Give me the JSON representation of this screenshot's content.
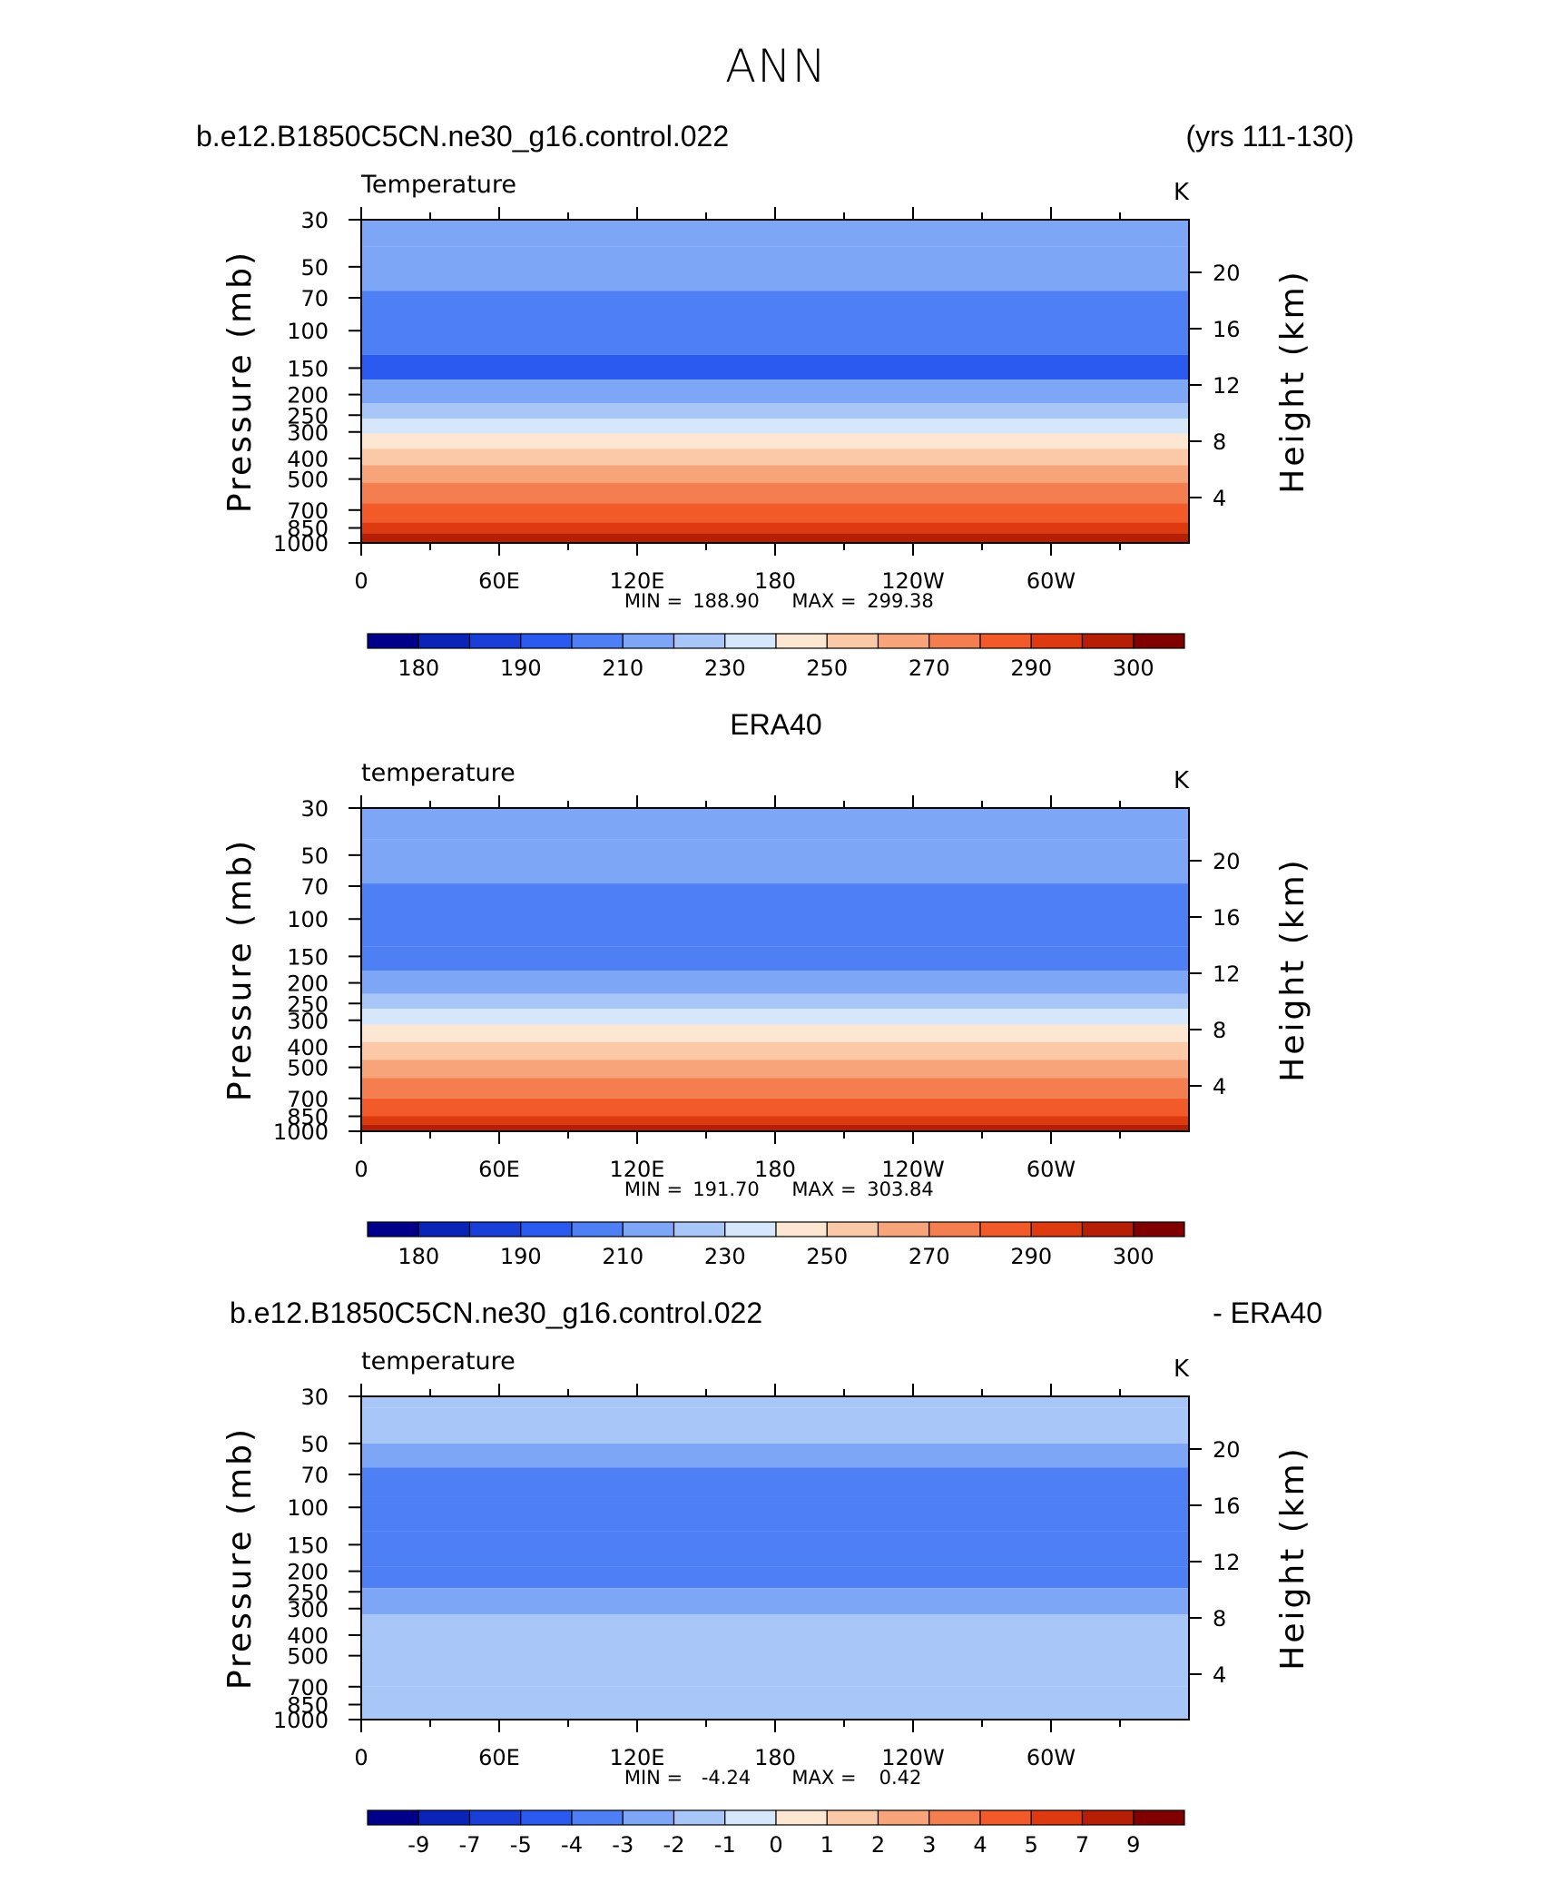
{
  "title": "ANN",
  "headers": [
    {
      "left": "b.e12.B1850C5CN.ne30_g16.control.022",
      "right": "(yrs 111-130)"
    },
    {
      "center": "ERA40"
    },
    {
      "left": "b.e12.B1850C5CN.ne30_g16.control.022",
      "right": "- ERA40"
    }
  ],
  "chart_data": [
    {
      "type": "heatmap",
      "variable_label": "Temperature",
      "units": "K",
      "ylabel": "Pressure (mb)",
      "ylabel_right": "Height (km)",
      "x_ticks": [
        "0",
        "60E",
        "120E",
        "180",
        "120W",
        "60W"
      ],
      "x_range": [
        0,
        360
      ],
      "y_ticks": [
        "30",
        "50",
        "70",
        "100",
        "150",
        "200",
        "250",
        "300",
        "400",
        "500",
        "700",
        "850",
        "1000"
      ],
      "y_range": [
        30,
        1000
      ],
      "y_scale": "log",
      "right_ticks": [
        "4",
        "8",
        "12",
        "16",
        "20"
      ],
      "stats_min_label": "MIN =",
      "stats_min": "188.90",
      "stats_max_label": "MAX =",
      "stats_max": "299.38",
      "colorbar_ticks": [
        "180",
        "190",
        "210",
        "230",
        "250",
        "270",
        "290",
        "300"
      ],
      "colorbar_colors": [
        "#00008b",
        "#0b24b8",
        "#1a3ed8",
        "#2a5af0",
        "#4f7ff5",
        "#7ea6f7",
        "#a9c6f9",
        "#d6e6fb",
        "#fde6d2",
        "#fbc9a8",
        "#f8a47b",
        "#f57e50",
        "#f25a2a",
        "#dd3a10",
        "#b61e05",
        "#800000"
      ],
      "bands": [
        {
          "p": 1000,
          "level": 15
        },
        {
          "p": 900,
          "level": 14
        },
        {
          "p": 800,
          "level": 13
        },
        {
          "p": 650,
          "level": 12
        },
        {
          "p": 520,
          "level": 11
        },
        {
          "p": 430,
          "level": 10
        },
        {
          "p": 360,
          "level": 9
        },
        {
          "p": 305,
          "level": 8
        },
        {
          "p": 260,
          "level": 7
        },
        {
          "p": 220,
          "level": 6
        },
        {
          "p": 170,
          "level": 5
        },
        {
          "p": 130,
          "level": 3
        },
        {
          "p": 65,
          "level": 4
        },
        {
          "p": 40,
          "level": 5
        },
        {
          "p": 30,
          "level": 5
        }
      ]
    },
    {
      "type": "heatmap",
      "variable_label": "temperature",
      "units": "K",
      "ylabel": "Pressure (mb)",
      "ylabel_right": "Height (km)",
      "x_ticks": [
        "0",
        "60E",
        "120E",
        "180",
        "120W",
        "60W"
      ],
      "x_range": [
        0,
        360
      ],
      "y_ticks": [
        "30",
        "50",
        "70",
        "100",
        "150",
        "200",
        "250",
        "300",
        "400",
        "500",
        "700",
        "850",
        "1000"
      ],
      "y_range": [
        30,
        1000
      ],
      "y_scale": "log",
      "right_ticks": [
        "4",
        "8",
        "12",
        "16",
        "20"
      ],
      "stats_min_label": "MIN =",
      "stats_min": "191.70",
      "stats_max_label": "MAX =",
      "stats_max": "303.84",
      "colorbar_ticks": [
        "180",
        "190",
        "210",
        "230",
        "250",
        "270",
        "290",
        "300"
      ],
      "colorbar_colors": [
        "#00008b",
        "#0b24b8",
        "#1a3ed8",
        "#2a5af0",
        "#4f7ff5",
        "#7ea6f7",
        "#a9c6f9",
        "#d6e6fb",
        "#fde6d2",
        "#fbc9a8",
        "#f8a47b",
        "#f57e50",
        "#f25a2a",
        "#dd3a10",
        "#b61e05",
        "#800000"
      ],
      "bands": [
        {
          "p": 1000,
          "level": 15
        },
        {
          "p": 930,
          "level": 14
        },
        {
          "p": 850,
          "level": 13
        },
        {
          "p": 700,
          "level": 12
        },
        {
          "p": 560,
          "level": 11
        },
        {
          "p": 460,
          "level": 10
        },
        {
          "p": 380,
          "level": 9
        },
        {
          "p": 315,
          "level": 8
        },
        {
          "p": 265,
          "level": 7
        },
        {
          "p": 225,
          "level": 6
        },
        {
          "p": 175,
          "level": 5
        },
        {
          "p": 135,
          "level": 4
        },
        {
          "p": 68,
          "level": 4
        },
        {
          "p": 42,
          "level": 5
        },
        {
          "p": 30,
          "level": 5
        }
      ]
    },
    {
      "type": "heatmap",
      "variable_label": "temperature",
      "units": "K",
      "ylabel": "Pressure (mb)",
      "ylabel_right": "Height (km)",
      "x_ticks": [
        "0",
        "60E",
        "120E",
        "180",
        "120W",
        "60W"
      ],
      "x_range": [
        0,
        360
      ],
      "y_ticks": [
        "30",
        "50",
        "70",
        "100",
        "150",
        "200",
        "250",
        "300",
        "400",
        "500",
        "700",
        "850",
        "1000"
      ],
      "y_range": [
        30,
        1000
      ],
      "y_scale": "log",
      "right_ticks": [
        "4",
        "8",
        "12",
        "16",
        "20"
      ],
      "stats_min_label": "MIN =",
      "stats_min": "-4.24",
      "stats_max_label": "MAX =",
      "stats_max": "0.42",
      "colorbar_ticks": [
        "-9",
        "-7",
        "-5",
        "-4",
        "-3",
        "-2",
        "-1",
        "0",
        "1",
        "2",
        "3",
        "4",
        "5",
        "7",
        "9"
      ],
      "colorbar_colors": [
        "#00008b",
        "#0b24b8",
        "#1a3ed8",
        "#2a5af0",
        "#4f7ff5",
        "#7ea6f7",
        "#a9c6f9",
        "#d6e6fb",
        "#fde6d2",
        "#fbc9a8",
        "#f8a47b",
        "#f57e50",
        "#f25a2a",
        "#dd3a10",
        "#b61e05",
        "#800000"
      ],
      "bands": [
        {
          "p": 1000,
          "level": 6
        },
        {
          "p": 700,
          "level": 6
        },
        {
          "p": 320,
          "level": 6
        },
        {
          "p": 240,
          "level": 5
        },
        {
          "p": 190,
          "level": 4
        },
        {
          "p": 130,
          "level": 4
        },
        {
          "p": 95,
          "level": 4
        },
        {
          "p": 65,
          "level": 4
        },
        {
          "p": 50,
          "level": 5
        },
        {
          "p": 34,
          "level": 6
        },
        {
          "p": 30,
          "level": 6
        }
      ]
    }
  ]
}
